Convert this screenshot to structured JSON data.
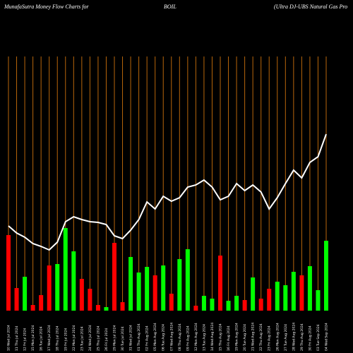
{
  "chart_data": {
    "type": "money-flow",
    "title": "MunafaSutra  Money Flow  Charts for",
    "symbol": "BOIL",
    "subtitle": "(Ultra  DJ-UBS Natural Gas Pro",
    "categories": [
      "10 Wed Jul 2024",
      "11 Thu Jul 2024",
      "12 Fri Jul 2024",
      "15 Mon Jul 2024",
      "16 Tue Jul 2024",
      "17 Wed Jul 2024",
      "18 Thu Jul 2024",
      "19 Fri Jul 2024",
      "22 Mon Jul 2024",
      "23 Tue Jul 2024",
      "24 Wed Jul 2024",
      "25 Thu Jul 2024",
      "26 Fri Jul 2024",
      "29 Mon Jul 2024",
      "30 Tue Jul 2024",
      "31 Wed Jul 2024",
      "01 Thu Aug 2024",
      "02 Fri Aug 2024",
      "05 Mon Aug 2024",
      "06 Tue Aug 2024",
      "07 Wed Aug 2024",
      "08 Thu Aug 2024",
      "09 Fri Aug 2024",
      "12 Mon Aug 2024",
      "13 Tue Aug 2024",
      "14 Wed Aug 2024",
      "15 Thu Aug 2024",
      "16 Fri Aug 2024",
      "19 Mon Aug 2024",
      "20 Tue Aug 2024",
      "21 Wed Aug 2024",
      "22 Thu Aug 2024",
      "23 Fri Aug 2024",
      "26 Mon Aug 2024",
      "27 Tue Aug 2024",
      "28 Wed Aug 2024",
      "29 Thu Aug 2024",
      "30 Fri Aug 2024",
      "03 Tue Sep 2024",
      "04 Wed Sep 2024"
    ],
    "flow": [
      107,
      32,
      48,
      8,
      22,
      64,
      66,
      117,
      84,
      45,
      31,
      8,
      5,
      96,
      12,
      76,
      54,
      62,
      50,
      64,
      24,
      73,
      87,
      7,
      21,
      17,
      78,
      14,
      21,
      15,
      47,
      17,
      31,
      41,
      36,
      55,
      50,
      63,
      29,
      99
    ],
    "flow_colors": [
      "#ff0000",
      "#ff0000",
      "#00ff00",
      "#ff0000",
      "#ff0000",
      "#ff0000",
      "#00ff00",
      "#00ff00",
      "#00ff00",
      "#ff0000",
      "#ff0000",
      "#ff0000",
      "#00ff00",
      "#ff0000",
      "#ff0000",
      "#00ff00",
      "#00ff00",
      "#00ff00",
      "#ff0000",
      "#00ff00",
      "#ff0000",
      "#00ff00",
      "#00ff00",
      "#ff0000",
      "#00ff00",
      "#00ff00",
      "#ff0000",
      "#00ff00",
      "#00ff00",
      "#ff0000",
      "#00ff00",
      "#ff0000",
      "#ff0000",
      "#00ff00",
      "#00ff00",
      "#00ff00",
      "#ff0000",
      "#00ff00",
      "#00ff00",
      "#00ff00"
    ],
    "price": [
      120,
      110,
      104,
      95,
      91,
      86,
      97,
      126,
      133,
      129,
      126,
      125,
      122,
      106,
      102,
      114,
      129,
      154,
      144,
      162,
      155,
      160,
      175,
      178,
      185,
      175,
      157,
      162,
      180,
      170,
      178,
      168,
      144,
      160,
      180,
      199,
      188,
      210,
      218,
      250
    ],
    "price_color": "#ffffff",
    "grid_color": "#b8660b",
    "ylim": [
      0,
      360
    ]
  }
}
